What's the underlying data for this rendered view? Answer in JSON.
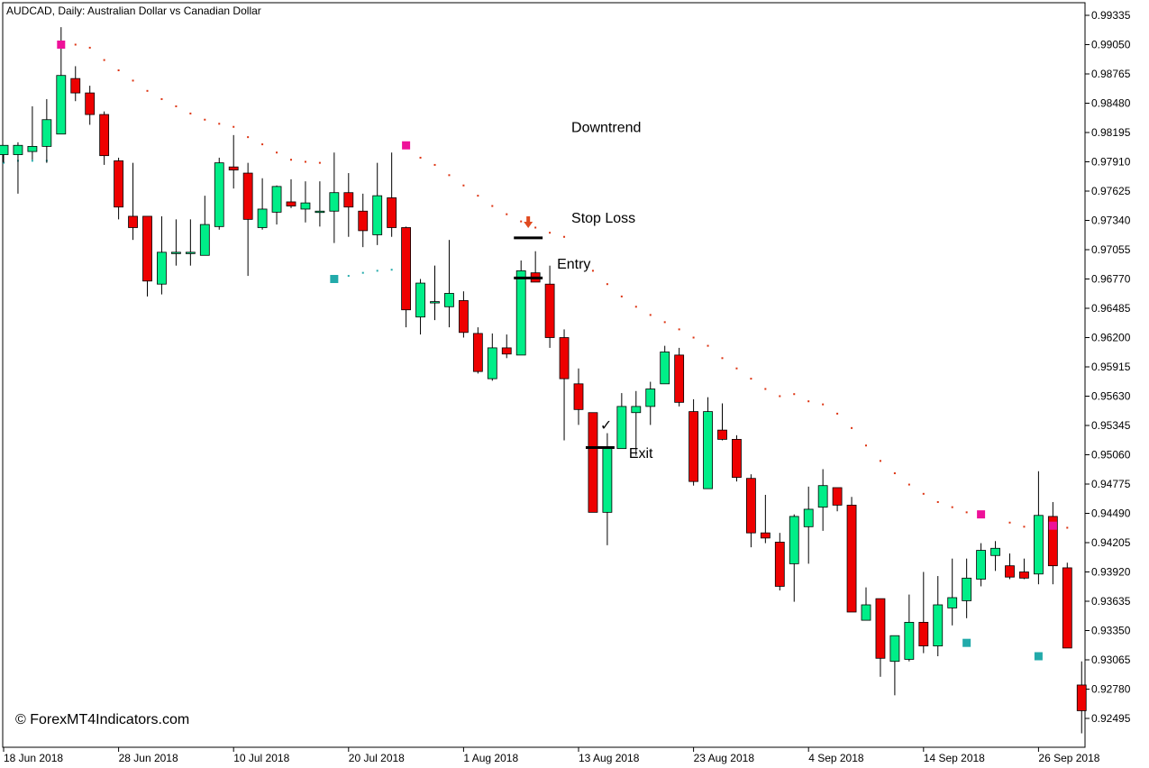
{
  "chart_data": {
    "type": "candlestick",
    "title": "AUDCAD, Daily:  Australian Dollar vs Canadian Dollar",
    "watermark": "© ForexMT4Indicators.com",
    "ylim": [
      0.9236,
      0.994
    ],
    "y_ticks": [
      "0.99335",
      "0.99050",
      "0.98765",
      "0.98480",
      "0.98195",
      "0.97910",
      "0.97625",
      "0.97340",
      "0.97055",
      "0.96770",
      "0.96485",
      "0.96200",
      "0.95915",
      "0.95630",
      "0.95345",
      "0.95060",
      "0.94775",
      "0.94490",
      "0.94205",
      "0.93920",
      "0.93635",
      "0.93350",
      "0.93065",
      "0.92780",
      "0.92495"
    ],
    "x_ticks": [
      {
        "label": "18 Jun 2018",
        "index": 0
      },
      {
        "label": "28 Jun 2018",
        "index": 8
      },
      {
        "label": "10 Jul 2018",
        "index": 16
      },
      {
        "label": "20 Jul 2018",
        "index": 24
      },
      {
        "label": "1 Aug 2018",
        "index": 32
      },
      {
        "label": "13 Aug 2018",
        "index": 40
      },
      {
        "label": "23 Aug 2018",
        "index": 48
      },
      {
        "label": "4 Sep 2018",
        "index": 56
      },
      {
        "label": "14 Sep 2018",
        "index": 64
      },
      {
        "label": "26 Sep 2018",
        "index": 72
      }
    ],
    "colors": {
      "bull": "#00ee88",
      "bear": "#ee0000",
      "wick": "#000000",
      "sar_bear": "#dd3311",
      "sar_bull": "#22aaaa",
      "marker_pink": "#ee1199",
      "marker_teal": "#22aaaa"
    },
    "candles": [
      {
        "o": 0.9798,
        "h": 0.9804,
        "l": 0.979,
        "c": 0.9807
      },
      {
        "o": 0.9798,
        "h": 0.981,
        "l": 0.976,
        "c": 0.9807
      },
      {
        "o": 0.9801,
        "h": 0.9845,
        "l": 0.9793,
        "c": 0.9806
      },
      {
        "o": 0.9806,
        "h": 0.9852,
        "l": 0.979,
        "c": 0.9832
      },
      {
        "o": 0.9818,
        "h": 0.9922,
        "l": 0.9818,
        "c": 0.9875
      },
      {
        "o": 0.9872,
        "h": 0.9884,
        "l": 0.985,
        "c": 0.9858
      },
      {
        "o": 0.9858,
        "h": 0.9865,
        "l": 0.9827,
        "c": 0.9837
      },
      {
        "o": 0.9837,
        "h": 0.984,
        "l": 0.9788,
        "c": 0.9797
      },
      {
        "o": 0.9792,
        "h": 0.9795,
        "l": 0.9735,
        "c": 0.9747
      },
      {
        "o": 0.9738,
        "h": 0.979,
        "l": 0.9715,
        "c": 0.9727
      },
      {
        "o": 0.9738,
        "h": 0.9738,
        "l": 0.966,
        "c": 0.9675
      },
      {
        "o": 0.9672,
        "h": 0.9738,
        "l": 0.9662,
        "c": 0.9703
      },
      {
        "o": 0.9703,
        "h": 0.9735,
        "l": 0.969,
        "c": 0.9703
      },
      {
        "o": 0.9703,
        "h": 0.9735,
        "l": 0.969,
        "c": 0.9703
      },
      {
        "o": 0.97,
        "h": 0.9758,
        "l": 0.97,
        "c": 0.973
      },
      {
        "o": 0.9728,
        "h": 0.9795,
        "l": 0.9725,
        "c": 0.979
      },
      {
        "o": 0.9786,
        "h": 0.9817,
        "l": 0.9765,
        "c": 0.9783
      },
      {
        "o": 0.978,
        "h": 0.979,
        "l": 0.968,
        "c": 0.9735
      },
      {
        "o": 0.9727,
        "h": 0.9775,
        "l": 0.9725,
        "c": 0.9745
      },
      {
        "o": 0.9742,
        "h": 0.9768,
        "l": 0.973,
        "c": 0.9767
      },
      {
        "o": 0.9752,
        "h": 0.9774,
        "l": 0.9746,
        "c": 0.9748
      },
      {
        "o": 0.9745,
        "h": 0.9772,
        "l": 0.9732,
        "c": 0.9751
      },
      {
        "o": 0.9743,
        "h": 0.9772,
        "l": 0.9728,
        "c": 0.9743
      },
      {
        "o": 0.9743,
        "h": 0.98,
        "l": 0.9712,
        "c": 0.9761
      },
      {
        "o": 0.9761,
        "h": 0.978,
        "l": 0.9718,
        "c": 0.9747
      },
      {
        "o": 0.9743,
        "h": 0.976,
        "l": 0.9708,
        "c": 0.9724
      },
      {
        "o": 0.972,
        "h": 0.979,
        "l": 0.971,
        "c": 0.9758
      },
      {
        "o": 0.9756,
        "h": 0.98,
        "l": 0.9718,
        "c": 0.9727
      },
      {
        "o": 0.9727,
        "h": 0.9728,
        "l": 0.963,
        "c": 0.9647
      },
      {
        "o": 0.964,
        "h": 0.9677,
        "l": 0.9623,
        "c": 0.9673
      },
      {
        "o": 0.9655,
        "h": 0.969,
        "l": 0.9637,
        "c": 0.9655
      },
      {
        "o": 0.965,
        "h": 0.9715,
        "l": 0.963,
        "c": 0.9663
      },
      {
        "o": 0.9656,
        "h": 0.9665,
        "l": 0.962,
        "c": 0.9625
      },
      {
        "o": 0.9624,
        "h": 0.963,
        "l": 0.9585,
        "c": 0.9587
      },
      {
        "o": 0.958,
        "h": 0.9624,
        "l": 0.9578,
        "c": 0.961
      },
      {
        "o": 0.961,
        "h": 0.9623,
        "l": 0.96,
        "c": 0.9604
      },
      {
        "o": 0.9603,
        "h": 0.9695,
        "l": 0.9603,
        "c": 0.9685
      },
      {
        "o": 0.9683,
        "h": 0.9704,
        "l": 0.9676,
        "c": 0.9674
      },
      {
        "o": 0.9672,
        "h": 0.969,
        "l": 0.961,
        "c": 0.962
      },
      {
        "o": 0.962,
        "h": 0.9628,
        "l": 0.952,
        "c": 0.958
      },
      {
        "o": 0.9575,
        "h": 0.959,
        "l": 0.9535,
        "c": 0.955
      },
      {
        "o": 0.9547,
        "h": 0.9547,
        "l": 0.945,
        "c": 0.945
      },
      {
        "o": 0.945,
        "h": 0.9527,
        "l": 0.9418,
        "c": 0.9512
      },
      {
        "o": 0.9512,
        "h": 0.9566,
        "l": 0.9512,
        "c": 0.9553
      },
      {
        "o": 0.9547,
        "h": 0.9568,
        "l": 0.9505,
        "c": 0.9553
      },
      {
        "o": 0.9553,
        "h": 0.9577,
        "l": 0.9535,
        "c": 0.957
      },
      {
        "o": 0.9575,
        "h": 0.9612,
        "l": 0.9575,
        "c": 0.9606
      },
      {
        "o": 0.9603,
        "h": 0.961,
        "l": 0.9553,
        "c": 0.9557
      },
      {
        "o": 0.9548,
        "h": 0.956,
        "l": 0.9476,
        "c": 0.948
      },
      {
        "o": 0.9473,
        "h": 0.9562,
        "l": 0.9473,
        "c": 0.9548
      },
      {
        "o": 0.953,
        "h": 0.9556,
        "l": 0.952,
        "c": 0.9521
      },
      {
        "o": 0.9521,
        "h": 0.9525,
        "l": 0.948,
        "c": 0.9484
      },
      {
        "o": 0.9483,
        "h": 0.9487,
        "l": 0.9416,
        "c": 0.943
      },
      {
        "o": 0.943,
        "h": 0.9467,
        "l": 0.942,
        "c": 0.9425
      },
      {
        "o": 0.9421,
        "h": 0.943,
        "l": 0.9374,
        "c": 0.9378
      },
      {
        "o": 0.94,
        "h": 0.9448,
        "l": 0.9363,
        "c": 0.9446
      },
      {
        "o": 0.9436,
        "h": 0.9475,
        "l": 0.94,
        "c": 0.9453
      },
      {
        "o": 0.9455,
        "h": 0.9492,
        "l": 0.9432,
        "c": 0.9476
      },
      {
        "o": 0.9474,
        "h": 0.9472,
        "l": 0.9451,
        "c": 0.9457
      },
      {
        "o": 0.9457,
        "h": 0.9465,
        "l": 0.9353,
        "c": 0.9353
      },
      {
        "o": 0.9345,
        "h": 0.9377,
        "l": 0.9345,
        "c": 0.936
      },
      {
        "o": 0.9366,
        "h": 0.9365,
        "l": 0.929,
        "c": 0.9308
      },
      {
        "o": 0.9305,
        "h": 0.933,
        "l": 0.9272,
        "c": 0.933
      },
      {
        "o": 0.9307,
        "h": 0.937,
        "l": 0.9305,
        "c": 0.9343
      },
      {
        "o": 0.9343,
        "h": 0.9392,
        "l": 0.9313,
        "c": 0.932
      },
      {
        "o": 0.932,
        "h": 0.9388,
        "l": 0.931,
        "c": 0.936
      },
      {
        "o": 0.9357,
        "h": 0.9405,
        "l": 0.934,
        "c": 0.9367
      },
      {
        "o": 0.9364,
        "h": 0.9405,
        "l": 0.9347,
        "c": 0.9386
      },
      {
        "o": 0.9385,
        "h": 0.942,
        "l": 0.9378,
        "c": 0.9413
      },
      {
        "o": 0.9408,
        "h": 0.9422,
        "l": 0.9393,
        "c": 0.9415
      },
      {
        "o": 0.9398,
        "h": 0.941,
        "l": 0.9385,
        "c": 0.9387
      },
      {
        "o": 0.9392,
        "h": 0.9405,
        "l": 0.9385,
        "c": 0.9386
      },
      {
        "o": 0.939,
        "h": 0.949,
        "l": 0.938,
        "c": 0.9447
      },
      {
        "o": 0.9446,
        "h": 0.946,
        "l": 0.938,
        "c": 0.9398
      },
      {
        "o": 0.9396,
        "h": 0.9401,
        "l": 0.932,
        "c": 0.9318
      },
      {
        "o": 0.9282,
        "h": 0.9305,
        "l": 0.9235,
        "c": 0.9257
      }
    ],
    "sar": [
      {
        "i": 0,
        "v": 0.979,
        "side": "bull"
      },
      {
        "i": 1,
        "v": 0.9792,
        "side": "bull"
      },
      {
        "i": 2,
        "v": 0.9792,
        "side": "bull"
      },
      {
        "i": 3,
        "v": 0.9792,
        "side": "bull"
      },
      {
        "i": 5,
        "v": 0.9905,
        "side": "bear"
      },
      {
        "i": 6,
        "v": 0.9902,
        "side": "bear"
      },
      {
        "i": 7,
        "v": 0.989,
        "side": "bear"
      },
      {
        "i": 8,
        "v": 0.988,
        "side": "bear"
      },
      {
        "i": 9,
        "v": 0.987,
        "side": "bear"
      },
      {
        "i": 10,
        "v": 0.986,
        "side": "bear"
      },
      {
        "i": 11,
        "v": 0.9852,
        "side": "bear"
      },
      {
        "i": 12,
        "v": 0.9845,
        "side": "bear"
      },
      {
        "i": 13,
        "v": 0.9838,
        "side": "bear"
      },
      {
        "i": 14,
        "v": 0.9832,
        "side": "bear"
      },
      {
        "i": 15,
        "v": 0.9828,
        "side": "bear"
      },
      {
        "i": 16,
        "v": 0.9825,
        "side": "bear"
      },
      {
        "i": 17,
        "v": 0.9815,
        "side": "bear"
      },
      {
        "i": 18,
        "v": 0.9808,
        "side": "bear"
      },
      {
        "i": 19,
        "v": 0.98,
        "side": "bear"
      },
      {
        "i": 20,
        "v": 0.9793,
        "side": "bear"
      },
      {
        "i": 21,
        "v": 0.9791,
        "side": "bear"
      },
      {
        "i": 22,
        "v": 0.979,
        "side": "bear"
      },
      {
        "i": 24,
        "v": 0.968,
        "side": "bull"
      },
      {
        "i": 25,
        "v": 0.9683,
        "side": "bull"
      },
      {
        "i": 26,
        "v": 0.9685,
        "side": "bull"
      },
      {
        "i": 27,
        "v": 0.9686,
        "side": "bull"
      },
      {
        "i": 29,
        "v": 0.9795,
        "side": "bear"
      },
      {
        "i": 30,
        "v": 0.9788,
        "side": "bear"
      },
      {
        "i": 31,
        "v": 0.9778,
        "side": "bear"
      },
      {
        "i": 32,
        "v": 0.9768,
        "side": "bear"
      },
      {
        "i": 33,
        "v": 0.9758,
        "side": "bear"
      },
      {
        "i": 34,
        "v": 0.9748,
        "side": "bear"
      },
      {
        "i": 35,
        "v": 0.974,
        "side": "bear"
      },
      {
        "i": 36,
        "v": 0.9733,
        "side": "bear"
      },
      {
        "i": 37,
        "v": 0.9727,
        "side": "bear"
      },
      {
        "i": 38,
        "v": 0.9722,
        "side": "bear"
      },
      {
        "i": 39,
        "v": 0.9718,
        "side": "bear"
      },
      {
        "i": 41,
        "v": 0.9685,
        "side": "bear"
      },
      {
        "i": 42,
        "v": 0.9672,
        "side": "bear"
      },
      {
        "i": 43,
        "v": 0.966,
        "side": "bear"
      },
      {
        "i": 44,
        "v": 0.965,
        "side": "bear"
      },
      {
        "i": 45,
        "v": 0.9642,
        "side": "bear"
      },
      {
        "i": 46,
        "v": 0.9635,
        "side": "bear"
      },
      {
        "i": 47,
        "v": 0.9628,
        "side": "bear"
      },
      {
        "i": 48,
        "v": 0.962,
        "side": "bear"
      },
      {
        "i": 49,
        "v": 0.9612,
        "side": "bear"
      },
      {
        "i": 50,
        "v": 0.96,
        "side": "bear"
      },
      {
        "i": 51,
        "v": 0.959,
        "side": "bear"
      },
      {
        "i": 52,
        "v": 0.958,
        "side": "bear"
      },
      {
        "i": 53,
        "v": 0.957,
        "side": "bear"
      },
      {
        "i": 54,
        "v": 0.9563,
        "side": "bear"
      },
      {
        "i": 55,
        "v": 0.9565,
        "side": "bear"
      },
      {
        "i": 56,
        "v": 0.9558,
        "side": "bear"
      },
      {
        "i": 57,
        "v": 0.9555,
        "side": "bear"
      },
      {
        "i": 58,
        "v": 0.9546,
        "side": "bear"
      },
      {
        "i": 59,
        "v": 0.9532,
        "side": "bear"
      },
      {
        "i": 60,
        "v": 0.9515,
        "side": "bear"
      },
      {
        "i": 61,
        "v": 0.95,
        "side": "bear"
      },
      {
        "i": 62,
        "v": 0.9488,
        "side": "bear"
      },
      {
        "i": 63,
        "v": 0.9477,
        "side": "bear"
      },
      {
        "i": 64,
        "v": 0.9468,
        "side": "bear"
      },
      {
        "i": 65,
        "v": 0.946,
        "side": "bear"
      },
      {
        "i": 66,
        "v": 0.9455,
        "side": "bear"
      },
      {
        "i": 67,
        "v": 0.945,
        "side": "bear"
      },
      {
        "i": 68,
        "v": 0.9447,
        "side": "bear"
      },
      {
        "i": 70,
        "v": 0.944,
        "side": "bear"
      },
      {
        "i": 71,
        "v": 0.9436,
        "side": "bear"
      },
      {
        "i": 72,
        "v": 0.9435,
        "side": "bear"
      },
      {
        "i": 74,
        "v": 0.9435,
        "side": "bear"
      }
    ],
    "markers": [
      {
        "i": 4,
        "v": 0.9905,
        "kind": "pink"
      },
      {
        "i": 28,
        "v": 0.9807,
        "kind": "pink"
      },
      {
        "i": 23,
        "v": 0.9677,
        "kind": "teal"
      },
      {
        "i": 68,
        "v": 0.9448,
        "kind": "pink"
      },
      {
        "i": 67,
        "v": 0.9323,
        "kind": "teal"
      },
      {
        "i": 73,
        "v": 0.9437,
        "kind": "pink"
      },
      {
        "i": 72,
        "v": 0.931,
        "kind": "teal"
      }
    ],
    "annotations": {
      "downtrend": {
        "text": "Downtrend",
        "i": 39.5,
        "v": 0.982
      },
      "stop_loss": {
        "text": "Stop Loss",
        "i": 39.5,
        "v": 0.9732,
        "line_v": 0.9717,
        "line_i0": 35.5,
        "line_i1": 37.5
      },
      "entry": {
        "text": "Entry",
        "i": 38.5,
        "v": 0.9687,
        "line_v": 0.9678,
        "line_i0": 35.5,
        "line_i1": 37.5
      },
      "exit": {
        "text": "Exit",
        "i": 43.5,
        "v": 0.9503,
        "line_v": 0.9513,
        "line_i0": 40.5,
        "line_i1": 42.5
      },
      "arrow": {
        "i": 36.5,
        "v": 0.973
      },
      "check": {
        "symbol": "✓",
        "i": 41.5,
        "v": 0.953
      }
    }
  }
}
